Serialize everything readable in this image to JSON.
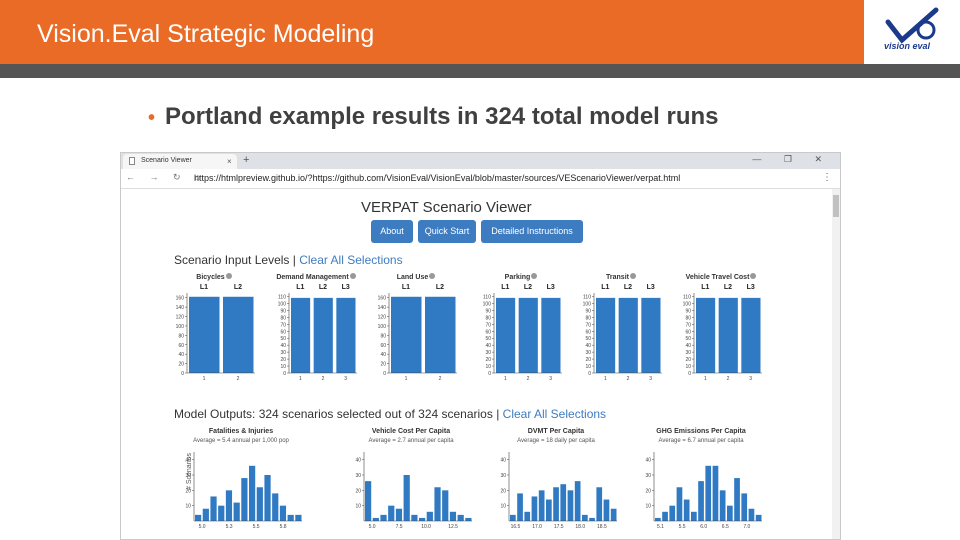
{
  "slide": {
    "title": "Vision.Eval Strategic Modeling",
    "bullet": "Portland example results in 324 total model runs",
    "logo_text": "vision eval",
    "logo_icon": "checkmark-e-logo"
  },
  "browser": {
    "tab_title": "Scenario Viewer",
    "tab_close": "×",
    "new_tab": "+",
    "window_controls": "— ❐ ✕",
    "nav_icons": "← → ↻ ⌂",
    "url": "https://htmlpreview.github.io/?https://github.com/VisionEval/VisionEval/blob/master/sources/VEScenarioViewer/verpat.html",
    "menu": "⋮"
  },
  "viewer": {
    "title": "VERPAT Scenario Viewer",
    "buttons": [
      "About",
      "Quick Start",
      "Detailed Instructions"
    ],
    "input_section": {
      "title": "Scenario Input Levels",
      "separator": " | ",
      "link": "Clear All Selections"
    },
    "output_section": {
      "title": "Model Outputs: 324 scenarios selected out of 324 scenarios",
      "separator": " | ",
      "link": "Clear All Selections"
    },
    "y_axis_label": "# Scenarios"
  },
  "colors": {
    "header_orange": "#ea6b26",
    "bar_blue": "#2f7ac2",
    "button_blue": "#3e7cc1"
  },
  "chart_data": [
    {
      "type": "bar",
      "title": "Bicycles",
      "categories": [
        "L1",
        "L2"
      ],
      "values": [
        162,
        162
      ],
      "ylim": [
        0,
        170
      ],
      "yticks": [
        160,
        140,
        120,
        100,
        80,
        60,
        40,
        20,
        0
      ],
      "xticks": [
        "1",
        "2"
      ]
    },
    {
      "type": "bar",
      "title": "Demand Management",
      "categories": [
        "L1",
        "L2",
        "L3"
      ],
      "values": [
        108,
        108,
        108
      ],
      "ylim": [
        0,
        115
      ],
      "yticks": [
        110,
        100,
        90,
        80,
        70,
        60,
        50,
        40,
        30,
        20,
        10,
        0
      ],
      "xticks": [
        "1",
        "2",
        "3"
      ]
    },
    {
      "type": "bar",
      "title": "Land Use",
      "categories": [
        "L1",
        "L2"
      ],
      "values": [
        162,
        162
      ],
      "ylim": [
        0,
        170
      ],
      "yticks": [
        160,
        140,
        120,
        100,
        80,
        60,
        40,
        20,
        0
      ],
      "xticks": [
        "1",
        "2"
      ]
    },
    {
      "type": "bar",
      "title": "Parking",
      "categories": [
        "L1",
        "L2",
        "L3"
      ],
      "values": [
        108,
        108,
        108
      ],
      "ylim": [
        0,
        115
      ],
      "yticks": [
        110,
        100,
        90,
        80,
        70,
        60,
        50,
        40,
        30,
        20,
        10,
        0
      ],
      "xticks": [
        "1",
        "2",
        "3"
      ]
    },
    {
      "type": "bar",
      "title": "Transit",
      "categories": [
        "L1",
        "L2",
        "L3"
      ],
      "values": [
        108,
        108,
        108
      ],
      "ylim": [
        0,
        115
      ],
      "yticks": [
        110,
        100,
        90,
        80,
        70,
        60,
        50,
        40,
        30,
        20,
        10,
        0
      ],
      "xticks": [
        "1",
        "2",
        "3"
      ]
    },
    {
      "type": "bar",
      "title": "Vehicle Travel Cost",
      "categories": [
        "L1",
        "L2",
        "L3"
      ],
      "values": [
        108,
        108,
        108
      ],
      "ylim": [
        0,
        115
      ],
      "yticks": [
        110,
        100,
        90,
        80,
        70,
        60,
        50,
        40,
        30,
        20,
        10,
        0
      ],
      "xticks": [
        "1",
        "2",
        "3"
      ]
    },
    {
      "type": "bar",
      "title": "Fatalities & Injuries",
      "average": "Average = 5.4 annual per 1,000 pop",
      "values": [
        4,
        8,
        16,
        10,
        20,
        12,
        28,
        36,
        22,
        30,
        18,
        10,
        4,
        4
      ],
      "ylim": [
        0,
        45
      ],
      "yticks": [
        40,
        30,
        20,
        10
      ],
      "xticks": [
        "5.0",
        "5.3",
        "5.5",
        "5.8"
      ]
    },
    {
      "type": "bar",
      "title": "Vehicle Cost Per Capita",
      "average": "Average = 2.7 annual per capita",
      "values": [
        26,
        2,
        4,
        10,
        8,
        30,
        4,
        2,
        6,
        22,
        20,
        6,
        4,
        2
      ],
      "ylim": [
        0,
        45
      ],
      "yticks": [
        40,
        30,
        20,
        10
      ],
      "xticks": [
        "5.0",
        "7.5",
        "10.0",
        "12.5"
      ]
    },
    {
      "type": "bar",
      "title": "DVMT Per Capita",
      "average": "Average = 18 daily per capita",
      "values": [
        4,
        18,
        6,
        16,
        20,
        14,
        22,
        24,
        20,
        26,
        4,
        2,
        22,
        14,
        8
      ],
      "ylim": [
        0,
        45
      ],
      "yticks": [
        40,
        30,
        20,
        10
      ],
      "xticks": [
        "16.5",
        "17.0",
        "17.5",
        "18.0",
        "18.5"
      ]
    },
    {
      "type": "bar",
      "title": "GHG Emissions Per Capita",
      "average": "Average = 6.7 annual per capita",
      "values": [
        2,
        6,
        10,
        22,
        14,
        6,
        26,
        36,
        36,
        20,
        10,
        28,
        18,
        8,
        4
      ],
      "ylim": [
        0,
        45
      ],
      "yticks": [
        40,
        30,
        20,
        10
      ],
      "xticks": [
        "5.1",
        "5.5",
        "6.0",
        "6.5",
        "7.0"
      ]
    }
  ]
}
